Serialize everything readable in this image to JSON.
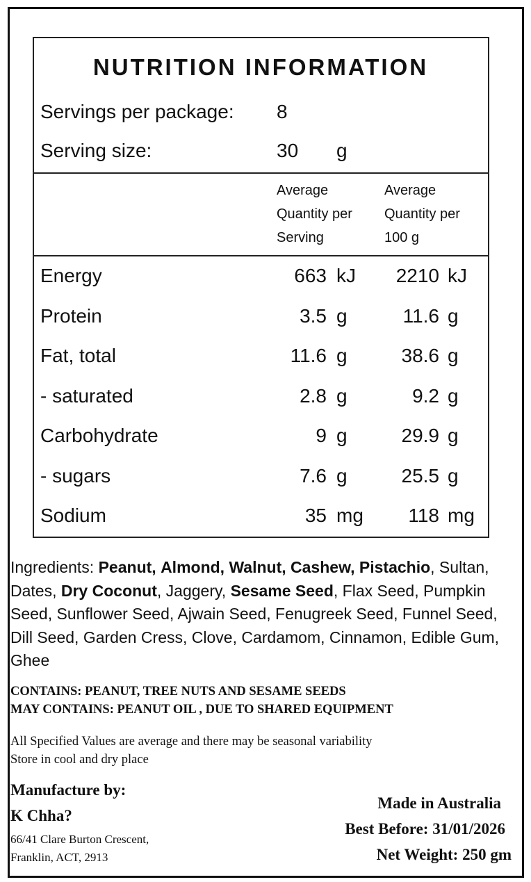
{
  "panel": {
    "title": "NUTRITION INFORMATION",
    "servings": {
      "label": "Servings per package:",
      "value": "8"
    },
    "serving_size": {
      "label": "Serving size:",
      "value": "30",
      "unit": "g"
    },
    "columns": [
      [
        "Average",
        "Quantity per",
        "Serving"
      ],
      [
        "Average",
        "Quantity per",
        "100 g"
      ]
    ],
    "rows": [
      {
        "name": "Energy",
        "per_serving": "663",
        "per_serving_unit": "kJ",
        "per_100g": "2210",
        "per_100g_unit": "kJ"
      },
      {
        "name": "Protein",
        "per_serving": "3.5",
        "per_serving_unit": "g",
        "per_100g": "11.6",
        "per_100g_unit": "g"
      },
      {
        "name": "Fat, total",
        "per_serving": "11.6",
        "per_serving_unit": "g",
        "per_100g": "38.6",
        "per_100g_unit": "g"
      },
      {
        "name": "- saturated",
        "per_serving": "2.8",
        "per_serving_unit": "g",
        "per_100g": "9.2",
        "per_100g_unit": "g"
      },
      {
        "name": "Carbohydrate",
        "per_serving": "9",
        "per_serving_unit": "g",
        "per_100g": "29.9",
        "per_100g_unit": "g"
      },
      {
        "name": "- sugars",
        "per_serving": "7.6",
        "per_serving_unit": "g",
        "per_100g": "25.5",
        "per_100g_unit": "g"
      },
      {
        "name": "Sodium",
        "per_serving": "35",
        "per_serving_unit": "mg",
        "per_100g": "118",
        "per_100g_unit": "mg"
      }
    ]
  },
  "ingredients": {
    "label": "Ingredients:",
    "items": [
      {
        "text": "Peanut,",
        "bold": true
      },
      {
        "text": "Almond,",
        "bold": true
      },
      {
        "text": "Walnut,",
        "bold": true
      },
      {
        "text": "Cashew,",
        "bold": true
      },
      {
        "text": "Pistachio",
        "bold": true
      },
      {
        "text": ", Sultan,",
        "bold": false
      },
      {
        "text": "Dates,",
        "bold": false
      },
      {
        "text": "Dry Coconut",
        "bold": true
      },
      {
        "text": ", Jaggery,",
        "bold": false
      },
      {
        "text": "Sesame Seed",
        "bold": true
      },
      {
        "text": ", Flax Seed, Pumpkin Seed, Sunflower Seed, Ajwain Seed, Fenugreek Seed, Funnel Seed, Dill Seed, Garden Cress, Clove, Cardamom, Cinnamon, Edible Gum, Ghee",
        "bold": false
      }
    ]
  },
  "allergens": [
    "CONTAINS: PEANUT, TREE NUTS AND SESAME SEEDS",
    "MAY CONTAINS: PEANUT OIL , DUE TO SHARED EQUIPMENT"
  ],
  "notes": [
    "All Specified Values are average and there may be seasonal variability",
    "Store in cool and dry place"
  ],
  "manufacturer": {
    "heading": "Manufacture by:",
    "name": "K Chha?",
    "address": [
      "66/41 Clare Burton Crescent,",
      "Franklin, ACT, 2913"
    ]
  },
  "origin": "Made in Australia",
  "best_before": "Best Before: 31/01/2026",
  "net_weight": "Net Weight: 250 gm"
}
